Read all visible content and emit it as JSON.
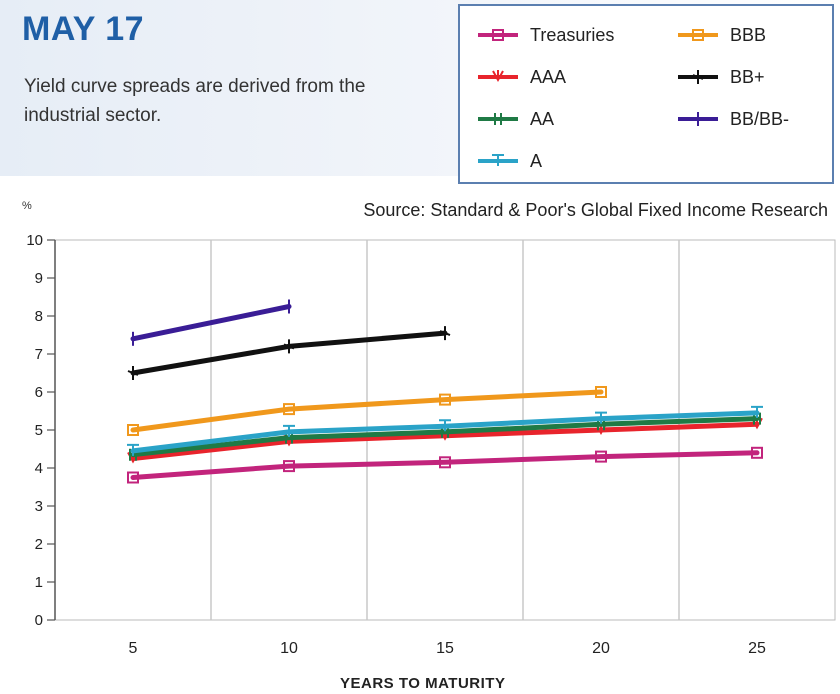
{
  "header": {
    "date": "MAY 17",
    "subtitle": "Yield curve spreads are derived from the industrial sector."
  },
  "source": "Source: Standard & Poor's Global Fixed Income Research",
  "chart_data": {
    "type": "line",
    "ylabel": "%",
    "xlabel": "YEARS TO MATURITY",
    "x_ticks": [
      5,
      10,
      15,
      20,
      25
    ],
    "y_ticks": [
      0,
      1,
      2,
      3,
      4,
      5,
      6,
      7,
      8,
      9,
      10
    ],
    "xlim": [
      2.5,
      27.5
    ],
    "ylim": [
      0,
      10
    ],
    "grid": true,
    "legend_position": "top-right",
    "series": [
      {
        "name": "Treasuries",
        "color": "#c2247c",
        "marker": "square",
        "x": [
          5,
          10,
          15,
          20,
          25
        ],
        "values": [
          3.75,
          4.05,
          4.15,
          4.3,
          4.4
        ]
      },
      {
        "name": "AAA",
        "color": "#e8242c",
        "marker": "v-tick",
        "x": [
          5,
          10,
          15,
          20,
          25
        ],
        "values": [
          4.25,
          4.7,
          4.85,
          5.0,
          5.15
        ]
      },
      {
        "name": "AA",
        "color": "#1f7a45",
        "marker": "double-tick",
        "x": [
          5,
          10,
          15,
          20,
          25
        ],
        "values": [
          4.35,
          4.8,
          4.95,
          5.15,
          5.3
        ]
      },
      {
        "name": "A",
        "color": "#2aa3c8",
        "marker": "t-tick",
        "x": [
          5,
          10,
          15,
          20,
          25
        ],
        "values": [
          4.45,
          4.95,
          5.1,
          5.3,
          5.45
        ]
      },
      {
        "name": "BBB",
        "color": "#f0981c",
        "marker": "square",
        "x": [
          5,
          10,
          15,
          20
        ],
        "values": [
          5.0,
          5.55,
          5.8,
          6.0
        ]
      },
      {
        "name": "BB+",
        "color": "#111111",
        "marker": "cross",
        "x": [
          5,
          10,
          15
        ],
        "values": [
          6.5,
          7.2,
          7.55
        ]
      },
      {
        "name": "BB/BB-",
        "color": "#3a1d96",
        "marker": "bar-end",
        "x": [
          5,
          10
        ],
        "values": [
          7.4,
          8.25
        ]
      }
    ]
  }
}
